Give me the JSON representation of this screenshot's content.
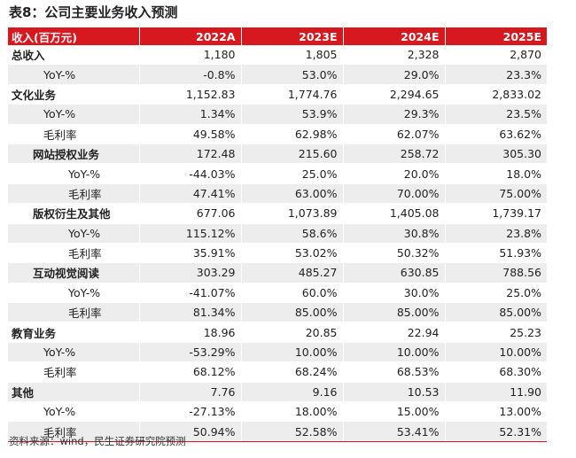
{
  "title": "表8：公司主要业务收入预测",
  "header": {
    "label": "收入(百万元)",
    "years": [
      "2022A",
      "2023E",
      "2024E",
      "2025E"
    ]
  },
  "rows": [
    {
      "label": "总收入",
      "level": 0,
      "shade": false,
      "values": [
        "1,180",
        "1,805",
        "2,328",
        "2,870"
      ]
    },
    {
      "label": "YoY-%",
      "level": 1,
      "shade": true,
      "values": [
        "-0.8%",
        "53.0%",
        "29.0%",
        "23.3%"
      ]
    },
    {
      "label": "文化业务",
      "level": 0,
      "shade": false,
      "values": [
        "1,152.83",
        "1,774.76",
        "2,294.65",
        "2,833.02"
      ]
    },
    {
      "label": "YoY-%",
      "level": 1,
      "shade": true,
      "values": [
        "1.34%",
        "53.9%",
        "29.3%",
        "23.5%"
      ]
    },
    {
      "label": "毛利率",
      "level": 1,
      "shade": false,
      "values": [
        "49.58%",
        "62.98%",
        "62.07%",
        "63.62%"
      ]
    },
    {
      "label": "网站授权业务",
      "level": 2,
      "shade": true,
      "values": [
        "172.48",
        "215.60",
        "258.72",
        "305.30"
      ]
    },
    {
      "label": "YoY-%",
      "level": 3,
      "shade": false,
      "values": [
        "-44.03%",
        "25.0%",
        "20.0%",
        "18.0%"
      ]
    },
    {
      "label": "毛利率",
      "level": 3,
      "shade": true,
      "values": [
        "47.41%",
        "63.00%",
        "70.00%",
        "75.00%"
      ]
    },
    {
      "label": "版权衍生及其他",
      "level": 2,
      "shade": false,
      "values": [
        "677.06",
        "1,073.89",
        "1,405.08",
        "1,739.17"
      ]
    },
    {
      "label": "YoY-%",
      "level": 3,
      "shade": true,
      "values": [
        "115.12%",
        "58.6%",
        "30.8%",
        "23.8%"
      ]
    },
    {
      "label": "毛利率",
      "level": 3,
      "shade": false,
      "values": [
        "35.91%",
        "53.02%",
        "50.32%",
        "51.93%"
      ]
    },
    {
      "label": "互动视觉阅读",
      "level": 2,
      "shade": true,
      "values": [
        "303.29",
        "485.27",
        "630.85",
        "788.56"
      ]
    },
    {
      "label": "YoY-%",
      "level": 3,
      "shade": false,
      "values": [
        "-41.07%",
        "60.0%",
        "30.0%",
        "25.0%"
      ]
    },
    {
      "label": "毛利率",
      "level": 3,
      "shade": true,
      "values": [
        "81.34%",
        "85.00%",
        "85.00%",
        "85.00%"
      ]
    },
    {
      "label": "教育业务",
      "level": 0,
      "shade": false,
      "values": [
        "18.96",
        "20.85",
        "22.94",
        "25.23"
      ]
    },
    {
      "label": "YoY-%",
      "level": 1,
      "shade": true,
      "values": [
        "-53.29%",
        "10.00%",
        "10.00%",
        "10.00%"
      ]
    },
    {
      "label": "毛利率",
      "level": 1,
      "shade": false,
      "values": [
        "68.12%",
        "68.24%",
        "68.53%",
        "68.30%"
      ]
    },
    {
      "label": "其他",
      "level": 0,
      "shade": true,
      "values": [
        "7.76",
        "9.16",
        "10.53",
        "11.90"
      ]
    },
    {
      "label": "YoY-%",
      "level": 1,
      "shade": false,
      "values": [
        "-27.13%",
        "18.00%",
        "15.00%",
        "13.00%"
      ]
    },
    {
      "label": "毛利率",
      "level": 1,
      "shade": true,
      "values": [
        "50.94%",
        "52.58%",
        "53.41%",
        "52.31%"
      ]
    }
  ],
  "source": "资料来源：wind，民生证券研究院预测",
  "colors": {
    "header_bg": "#d7191f",
    "header_text": "#ffffff",
    "stripe": "#ededed"
  }
}
